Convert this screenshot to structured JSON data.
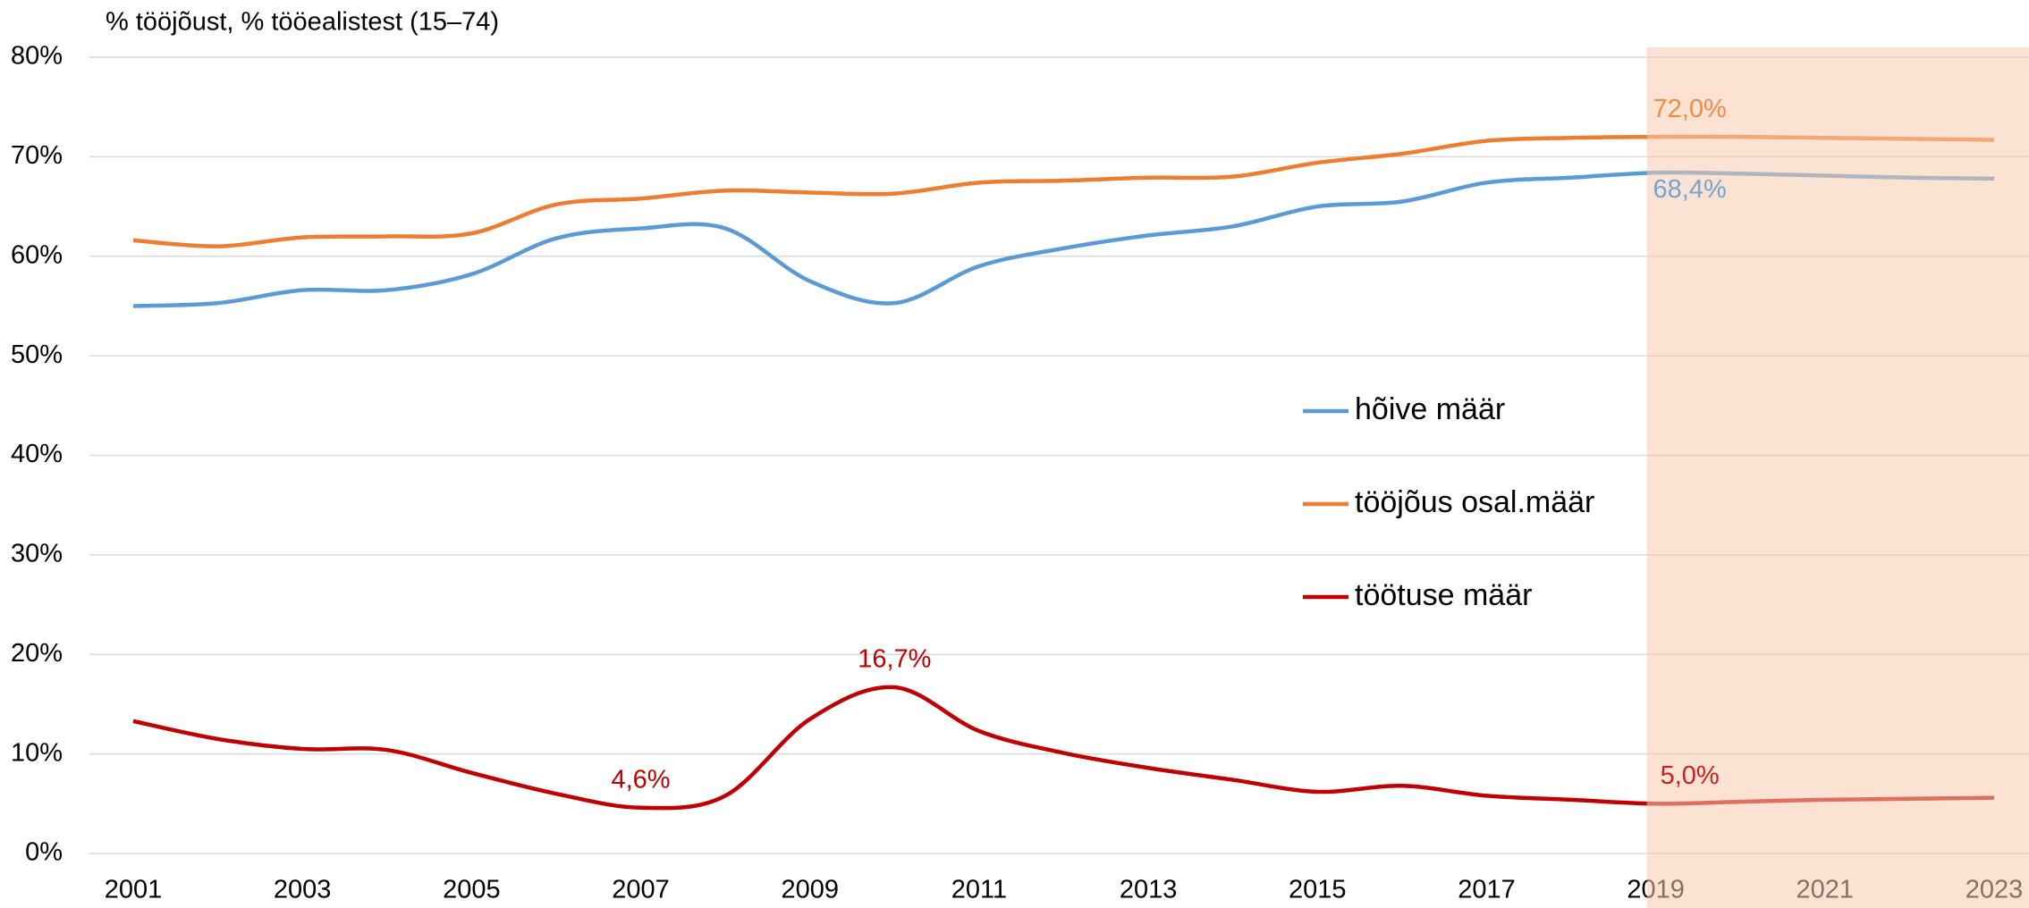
{
  "chart_data": {
    "type": "line",
    "y_axis_label": "% tööjõust, % tööealistest (15–74)",
    "x": [
      2001,
      2002,
      2003,
      2004,
      2005,
      2006,
      2007,
      2008,
      2009,
      2010,
      2011,
      2012,
      2013,
      2014,
      2015,
      2016,
      2017,
      2018,
      2019,
      2020,
      2021,
      2022,
      2023
    ],
    "xlim": [
      2001,
      2023
    ],
    "xticks": [
      2001,
      2003,
      2005,
      2007,
      2009,
      2011,
      2013,
      2015,
      2017,
      2019,
      2021,
      2023
    ],
    "ylim": [
      0,
      80
    ],
    "yticks": [
      {
        "value": 0,
        "label": "0%"
      },
      {
        "value": 10,
        "label": "10%"
      },
      {
        "value": 20,
        "label": "20%"
      },
      {
        "value": 30,
        "label": "30%"
      },
      {
        "value": 40,
        "label": "40%"
      },
      {
        "value": 50,
        "label": "50%"
      },
      {
        "value": 60,
        "label": "60%"
      },
      {
        "value": 70,
        "label": "70%"
      },
      {
        "value": 80,
        "label": "80%"
      }
    ],
    "grid": true,
    "forecast_from": 2019,
    "series": [
      {
        "name": "hõive määr",
        "color": "#5b9bd5",
        "values": [
          55.0,
          55.3,
          56.6,
          56.6,
          58.2,
          61.8,
          62.8,
          62.8,
          57.5,
          55.3,
          59.0,
          60.8,
          62.1,
          63.0,
          65.0,
          65.5,
          67.4,
          67.9,
          68.4,
          68.3,
          68.1,
          67.9,
          67.8
        ],
        "value_labels": [
          null,
          null,
          null,
          null,
          null,
          null,
          null,
          null,
          null,
          null,
          null,
          null,
          null,
          null,
          null,
          null,
          null,
          null,
          "68,4%",
          null,
          null,
          null,
          null
        ]
      },
      {
        "name": "tööjõus osal.määr",
        "color": "#ed7d31",
        "values": [
          61.6,
          61.0,
          61.9,
          62.0,
          62.3,
          65.2,
          65.8,
          66.6,
          66.4,
          66.3,
          67.4,
          67.6,
          67.9,
          68.0,
          69.4,
          70.3,
          71.6,
          71.9,
          72.0,
          72.0,
          71.9,
          71.8,
          71.7
        ],
        "value_labels": [
          null,
          null,
          null,
          null,
          null,
          null,
          null,
          null,
          null,
          null,
          null,
          null,
          null,
          null,
          null,
          null,
          null,
          null,
          "72,0%",
          null,
          null,
          null,
          null
        ]
      },
      {
        "name": "töötuse määr",
        "color": "#c00000",
        "values": [
          13.3,
          11.5,
          10.5,
          10.4,
          8.1,
          6.0,
          4.6,
          5.8,
          13.5,
          16.7,
          12.3,
          10.1,
          8.6,
          7.4,
          6.2,
          6.8,
          5.8,
          5.4,
          5.0,
          5.2,
          5.4,
          5.5,
          5.6
        ],
        "value_labels": [
          null,
          null,
          null,
          null,
          null,
          null,
          "4,6%",
          null,
          null,
          "16,7%",
          null,
          null,
          null,
          null,
          null,
          null,
          null,
          null,
          "5,0%",
          null,
          null,
          null,
          null
        ]
      }
    ]
  }
}
